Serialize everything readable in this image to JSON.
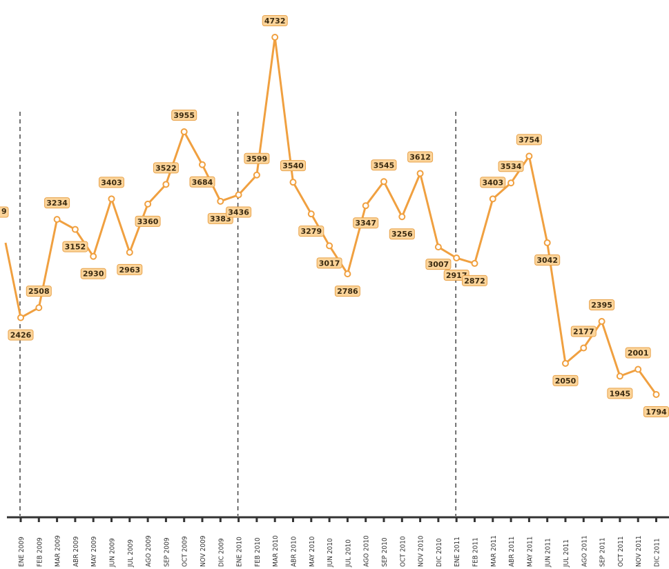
{
  "chart_data": {
    "type": "line",
    "title": "",
    "xlabel": "",
    "ylabel": "",
    "colors": {
      "line": "#f0a040",
      "label_fill": "#fbd49a",
      "label_stroke": "#e8a24a",
      "axis": "#333333"
    },
    "grid": false,
    "legend": "none",
    "year_dividers_at": [
      "ENE 2009",
      "ENE 2010",
      "ENE 2011"
    ],
    "categories": [
      "ENE 2009",
      "FEB 2009",
      "MAR 2009",
      "ABR 2009",
      "MAY 2009",
      "JUN 2009",
      "JUL 2009",
      "AGO 2009",
      "SEP 2009",
      "OCT 2009",
      "NOV 2009",
      "DIC 2009",
      "ENE 2010",
      "FEB 2010",
      "MAR 2010",
      "ABR 2010",
      "MAY 2010",
      "JUN 2010",
      "JUL 2010",
      "AGO 2010",
      "SEP 2010",
      "OCT 2010",
      "NOV 2010",
      "DIC 2010",
      "ENE 2011",
      "FEB 2011",
      "MAR 2011",
      "ABR 2011",
      "MAY 2011",
      "JUN 2011",
      "JUL 2011",
      "AGO 2011",
      "SEP 2011",
      "OCT 2011",
      "NOV 2011",
      "DIC 2011"
    ],
    "values": [
      2426,
      2508,
      3234,
      3152,
      2930,
      3403,
      2963,
      3360,
      3522,
      3955,
      3684,
      3383,
      3436,
      3599,
      4732,
      3540,
      3279,
      3017,
      2786,
      3347,
      3545,
      3256,
      3612,
      3007,
      2917,
      2872,
      3403,
      3534,
      3754,
      3042,
      2050,
      2177,
      2395,
      1945,
      2001,
      1794
    ],
    "value_labels": [
      "2426",
      "2508",
      "3234",
      "3152",
      "2930",
      "3403",
      "2963",
      "3360",
      "3522",
      "3955",
      "3684",
      "3383",
      "3436",
      "3599",
      "4732",
      "3540",
      "3279",
      "3017",
      "2786",
      "3347",
      "3545",
      "3256",
      "3612",
      "3007",
      "2917",
      "2872",
      "3403",
      "3534",
      "3754",
      "3042",
      "2050",
      "2177",
      "2395",
      "1945",
      "2001",
      "1794"
    ],
    "label_side": [
      "below",
      "above",
      "above",
      "below",
      "below",
      "above",
      "below",
      "below",
      "above",
      "above",
      "below",
      "below",
      "below",
      "above",
      "above",
      "above",
      "below",
      "below",
      "below",
      "below",
      "above",
      "below",
      "above",
      "below",
      "below",
      "below",
      "above",
      "above",
      "above",
      "below",
      "below",
      "above",
      "above",
      "below",
      "above",
      "below"
    ],
    "partial_label_left": "9"
  }
}
